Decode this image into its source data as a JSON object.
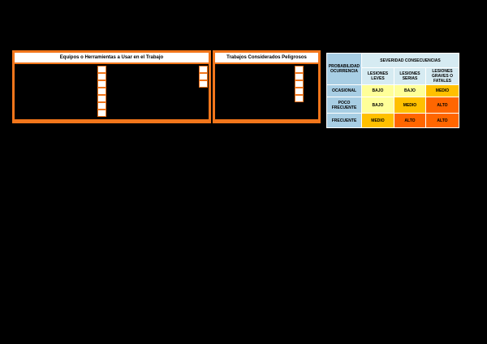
{
  "page": {
    "background": "#000000"
  },
  "tables": [
    {
      "title": "Equipos o Herramientas a Usar en el Trabajo",
      "checkbox_columns": [
        7,
        3
      ]
    },
    {
      "title": "Trabajos Considerados Peligrosos",
      "checkbox_columns": [
        5
      ]
    }
  ],
  "risk_matrix": {
    "corner_header": "PROBABILIDAD OCURRENCIA",
    "severity_header": "SEVERIDAD CONSECUENCIAS",
    "columns": [
      "LESIONES LEVES",
      "LESIONES SERIAS",
      "LESIONES GRAVES O FATALES"
    ],
    "rows": [
      {
        "label": "OCASIONAL",
        "values": [
          "BAJO",
          "BAJO",
          "MEDIO"
        ]
      },
      {
        "label": "POCO FRECUENTE",
        "values": [
          "BAJO",
          "MEDIO",
          "ALTO"
        ]
      },
      {
        "label": "FRECUENTE",
        "values": [
          "MEDIO",
          "ALTO",
          "ALTO"
        ]
      }
    ],
    "colors": {
      "BAJO": "#ffff99",
      "MEDIO": "#ffc000",
      "ALTO": "#ff6600",
      "label_bg": "#a8cee4",
      "header_bg": "#d6ebf2",
      "table_border": "#f2761b"
    }
  }
}
